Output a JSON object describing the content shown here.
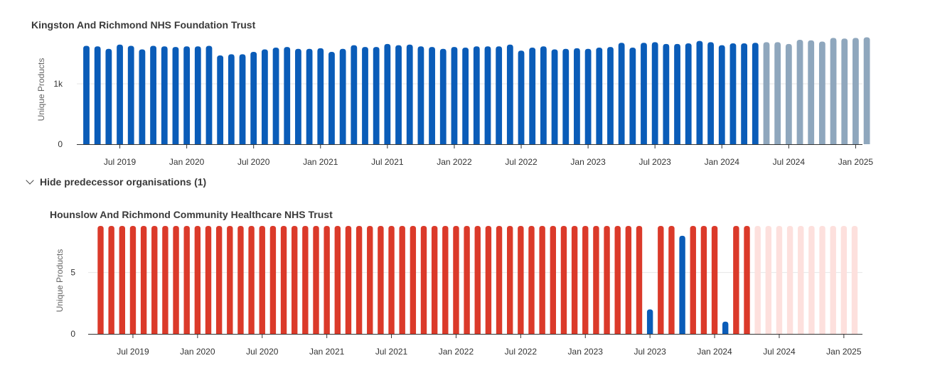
{
  "toggle": {
    "label": "Hide predecessor organisations (1)",
    "icon": "chevron-down-icon"
  },
  "colors": {
    "primary": "#0a5cb8",
    "forecast": "#8fa7bd",
    "missing": "#db3a2a",
    "missing_forecast": "#fde0dd",
    "grid": "#e6e6e6",
    "axis": "#333333"
  },
  "chart_data": [
    {
      "type": "bar",
      "title": "Kingston And Richmond NHS Foundation Trust",
      "ylabel": "Unique Products",
      "ylim": [
        0,
        1800
      ],
      "yticks": [
        {
          "value": 0,
          "label": "0"
        },
        {
          "value": 1000,
          "label": "1k"
        }
      ],
      "x_start": "2019-04",
      "xticks": [
        {
          "date": "2019-07",
          "label": "Jul 2019"
        },
        {
          "date": "2020-01",
          "label": "Jan 2020"
        },
        {
          "date": "2020-07",
          "label": "Jul 2020"
        },
        {
          "date": "2021-01",
          "label": "Jan 2021"
        },
        {
          "date": "2021-07",
          "label": "Jul 2021"
        },
        {
          "date": "2022-01",
          "label": "Jan 2022"
        },
        {
          "date": "2022-07",
          "label": "Jul 2022"
        },
        {
          "date": "2023-01",
          "label": "Jan 2023"
        },
        {
          "date": "2023-07",
          "label": "Jul 2023"
        },
        {
          "date": "2024-01",
          "label": "Jan 2024"
        },
        {
          "date": "2024-07",
          "label": "Jul 2024"
        },
        {
          "date": "2025-01",
          "label": "Jan 2025"
        }
      ],
      "values": [
        1630,
        1620,
        1580,
        1650,
        1630,
        1570,
        1630,
        1620,
        1610,
        1620,
        1620,
        1630,
        1470,
        1490,
        1490,
        1530,
        1570,
        1600,
        1610,
        1580,
        1580,
        1590,
        1530,
        1580,
        1640,
        1610,
        1610,
        1660,
        1640,
        1650,
        1620,
        1610,
        1580,
        1610,
        1600,
        1620,
        1620,
        1620,
        1650,
        1550,
        1600,
        1620,
        1570,
        1580,
        1590,
        1580,
        1600,
        1610,
        1680,
        1600,
        1680,
        1690,
        1660,
        1660,
        1670,
        1710,
        1690,
        1640,
        1670,
        1670,
        1680,
        1690,
        1690,
        1660,
        1730,
        1720,
        1700,
        1760,
        1750,
        1760,
        1770
      ],
      "status": [
        "actual",
        "actual",
        "actual",
        "actual",
        "actual",
        "actual",
        "actual",
        "actual",
        "actual",
        "actual",
        "actual",
        "actual",
        "actual",
        "actual",
        "actual",
        "actual",
        "actual",
        "actual",
        "actual",
        "actual",
        "actual",
        "actual",
        "actual",
        "actual",
        "actual",
        "actual",
        "actual",
        "actual",
        "actual",
        "actual",
        "actual",
        "actual",
        "actual",
        "actual",
        "actual",
        "actual",
        "actual",
        "actual",
        "actual",
        "actual",
        "actual",
        "actual",
        "actual",
        "actual",
        "actual",
        "actual",
        "actual",
        "actual",
        "actual",
        "actual",
        "actual",
        "actual",
        "actual",
        "actual",
        "actual",
        "actual",
        "actual",
        "actual",
        "actual",
        "actual",
        "actual",
        "forecast",
        "forecast",
        "forecast",
        "forecast",
        "forecast",
        "forecast",
        "forecast",
        "forecast",
        "forecast",
        "forecast"
      ],
      "grid": true
    },
    {
      "type": "bar",
      "title": "Hounslow And Richmond Community Healthcare NHS Trust",
      "ylabel": "Unique Products",
      "ylim": [
        0,
        8.8
      ],
      "yticks": [
        {
          "value": 0,
          "label": "0"
        },
        {
          "value": 5,
          "label": "5"
        }
      ],
      "x_start": "2019-04",
      "xticks": [
        {
          "date": "2019-07",
          "label": "Jul 2019"
        },
        {
          "date": "2020-01",
          "label": "Jan 2020"
        },
        {
          "date": "2020-07",
          "label": "Jul 2020"
        },
        {
          "date": "2021-01",
          "label": "Jan 2021"
        },
        {
          "date": "2021-07",
          "label": "Jul 2021"
        },
        {
          "date": "2022-01",
          "label": "Jan 2022"
        },
        {
          "date": "2022-07",
          "label": "Jul 2022"
        },
        {
          "date": "2023-01",
          "label": "Jan 2023"
        },
        {
          "date": "2023-07",
          "label": "Jul 2023"
        },
        {
          "date": "2024-01",
          "label": "Jan 2024"
        },
        {
          "date": "2024-07",
          "label": "Jul 2024"
        },
        {
          "date": "2025-01",
          "label": "Jan 2025"
        }
      ],
      "values": [
        8.8,
        8.8,
        8.8,
        8.8,
        8.8,
        8.8,
        8.8,
        8.8,
        8.8,
        8.8,
        8.8,
        8.8,
        8.8,
        8.8,
        8.8,
        8.8,
        8.8,
        8.8,
        8.8,
        8.8,
        8.8,
        8.8,
        8.8,
        8.8,
        8.8,
        8.8,
        8.8,
        8.8,
        8.8,
        8.8,
        8.8,
        8.8,
        8.8,
        8.8,
        8.8,
        8.8,
        8.8,
        8.8,
        8.8,
        8.8,
        8.8,
        8.8,
        8.8,
        8.8,
        8.8,
        8.8,
        8.8,
        8.8,
        8.8,
        8.8,
        8.8,
        2,
        8.8,
        8.8,
        8,
        8.8,
        8.8,
        8.8,
        1,
        8.8,
        8.8,
        8.8,
        8.8,
        8.8,
        8.8,
        8.8,
        8.8,
        8.8,
        8.8,
        8.8,
        8.8
      ],
      "status": [
        "missing",
        "missing",
        "missing",
        "missing",
        "missing",
        "missing",
        "missing",
        "missing",
        "missing",
        "missing",
        "missing",
        "missing",
        "missing",
        "missing",
        "missing",
        "missing",
        "missing",
        "missing",
        "missing",
        "missing",
        "missing",
        "missing",
        "missing",
        "missing",
        "missing",
        "missing",
        "missing",
        "missing",
        "missing",
        "missing",
        "missing",
        "missing",
        "missing",
        "missing",
        "missing",
        "missing",
        "missing",
        "missing",
        "missing",
        "missing",
        "missing",
        "missing",
        "missing",
        "missing",
        "missing",
        "missing",
        "missing",
        "missing",
        "missing",
        "missing",
        "missing",
        "actual",
        "missing",
        "missing",
        "actual",
        "missing",
        "missing",
        "missing",
        "actual",
        "missing",
        "missing",
        "missing_forecast",
        "missing_forecast",
        "missing_forecast",
        "missing_forecast",
        "missing_forecast",
        "missing_forecast",
        "missing_forecast",
        "missing_forecast",
        "missing_forecast",
        "missing_forecast"
      ],
      "grid": true
    }
  ]
}
